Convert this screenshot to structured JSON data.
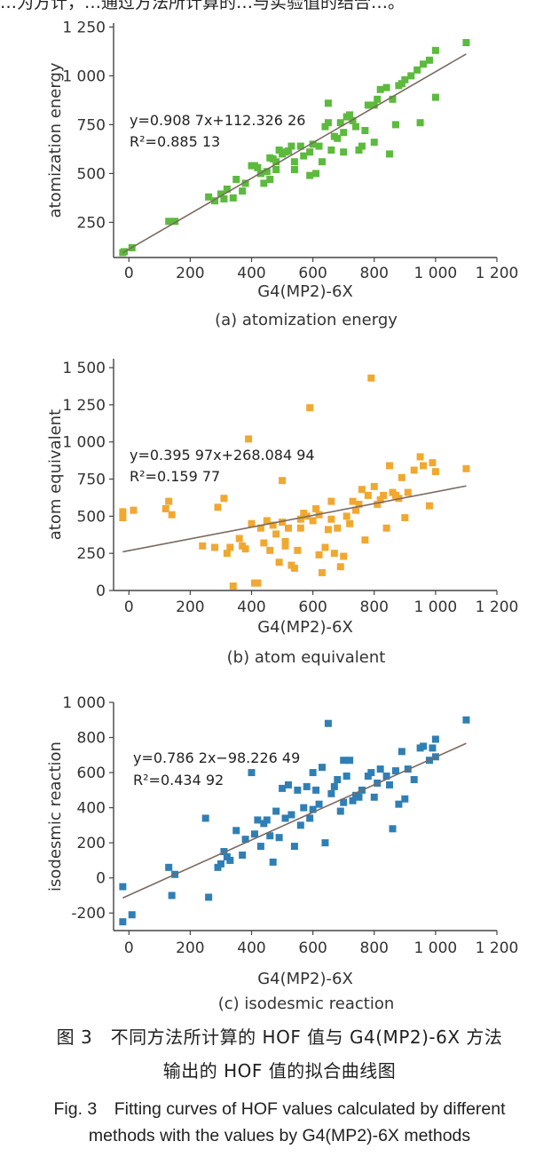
{
  "top_text_fragment": "…为方计，…通过方法所计算的…与实验值的结合…。",
  "caption": {
    "cn_line1": "图 3　不同方法所计算的 HOF 值与 G4(MP2)-6X 方法",
    "cn_line2": "输出的 HOF 值的拟合曲线图",
    "en_line1": "Fig. 3　Fitting curves of HOF values calculated by different",
    "en_line2": "methods with the values by G4(MP2)-6X methods"
  },
  "colors": {
    "green": "#5cba3c",
    "orange": "#f1a830",
    "blue": "#2f7fb5",
    "fit_line": "#7a6a62",
    "axis": "#444444"
  },
  "chart_data": [
    {
      "type": "scatter",
      "subcaption": "(a) atomization energy",
      "xlabel": "G4(MP2)-6X",
      "ylabel": "atomization energy",
      "xlim": [
        -50,
        1200
      ],
      "ylim": [
        70,
        1270
      ],
      "xticks": [
        0,
        200,
        400,
        600,
        800,
        1000,
        1200
      ],
      "xtick_labels": [
        "0",
        "200",
        "400",
        "600",
        "800",
        "1 000",
        "1 200"
      ],
      "yticks": [
        250,
        500,
        750,
        1000,
        1250
      ],
      "ytick_labels": [
        "250",
        "500",
        "750",
        "1 000",
        "1 250"
      ],
      "equation": "y=0.908 7x+112.326 26",
      "r2": "R²=0.885 13",
      "fit": {
        "slope": 0.9087,
        "intercept": 112.32626,
        "x_range": [
          -20,
          1100
        ]
      },
      "color": "#5cba3c",
      "points": [
        [
          -20,
          95
        ],
        [
          -15,
          100
        ],
        [
          10,
          120
        ],
        [
          130,
          255
        ],
        [
          150,
          255
        ],
        [
          260,
          380
        ],
        [
          280,
          360
        ],
        [
          300,
          395
        ],
        [
          310,
          370
        ],
        [
          320,
          420
        ],
        [
          340,
          375
        ],
        [
          350,
          470
        ],
        [
          370,
          410
        ],
        [
          380,
          450
        ],
        [
          400,
          540
        ],
        [
          410,
          540
        ],
        [
          420,
          530
        ],
        [
          430,
          500
        ],
        [
          440,
          450
        ],
        [
          450,
          510
        ],
        [
          460,
          580
        ],
        [
          470,
          575
        ],
        [
          480,
          560
        ],
        [
          490,
          620
        ],
        [
          500,
          600
        ],
        [
          510,
          610
        ],
        [
          520,
          615
        ],
        [
          530,
          640
        ],
        [
          540,
          560
        ],
        [
          560,
          640
        ],
        [
          570,
          590
        ],
        [
          590,
          490
        ],
        [
          600,
          650
        ],
        [
          610,
          500
        ],
        [
          620,
          640
        ],
        [
          630,
          560
        ],
        [
          640,
          740
        ],
        [
          650,
          760
        ],
        [
          660,
          620
        ],
        [
          670,
          690
        ],
        [
          690,
          760
        ],
        [
          700,
          710
        ],
        [
          710,
          790
        ],
        [
          720,
          800
        ],
        [
          730,
          770
        ],
        [
          740,
          740
        ],
        [
          750,
          620
        ],
        [
          770,
          720
        ],
        [
          780,
          850
        ],
        [
          800,
          850
        ],
        [
          810,
          880
        ],
        [
          820,
          930
        ],
        [
          840,
          940
        ],
        [
          850,
          600
        ],
        [
          860,
          880
        ],
        [
          870,
          750
        ],
        [
          880,
          950
        ],
        [
          890,
          960
        ],
        [
          900,
          980
        ],
        [
          920,
          1000
        ],
        [
          940,
          1030
        ],
        [
          950,
          760
        ],
        [
          960,
          1060
        ],
        [
          980,
          1080
        ],
        [
          1000,
          890
        ],
        [
          1000,
          1130
        ],
        [
          1100,
          1170
        ],
        [
          650,
          860
        ],
        [
          680,
          680
        ],
        [
          760,
          640
        ],
        [
          540,
          520
        ],
        [
          480,
          520
        ],
        [
          800,
          660
        ],
        [
          460,
          470
        ],
        [
          590,
          610
        ],
        [
          700,
          610
        ]
      ]
    },
    {
      "type": "scatter",
      "subcaption": "(b) atom equivalent",
      "xlabel": "G4(MP2)-6X",
      "ylabel": "atom equivalent",
      "xlim": [
        -50,
        1200
      ],
      "ylim": [
        0,
        1560
      ],
      "xticks": [
        0,
        200,
        400,
        600,
        800,
        1000,
        1200
      ],
      "xtick_labels": [
        "0",
        "200",
        "400",
        "600",
        "800",
        "1 000",
        "1 200"
      ],
      "yticks": [
        0,
        250,
        500,
        750,
        1000,
        1250,
        1500
      ],
      "ytick_labels": [
        "0",
        "250",
        "500",
        "750",
        "1 000",
        "1 250",
        "1 500"
      ],
      "equation": "y=0.395 97x+268.084 94",
      "r2": "R²=0.159 77",
      "fit": {
        "slope": 0.39597,
        "intercept": 268.08494,
        "x_range": [
          -20,
          1100
        ]
      },
      "color": "#f1a830",
      "points": [
        [
          -20,
          490
        ],
        [
          -20,
          530
        ],
        [
          15,
          540
        ],
        [
          120,
          550
        ],
        [
          130,
          600
        ],
        [
          140,
          510
        ],
        [
          240,
          300
        ],
        [
          280,
          290
        ],
        [
          290,
          560
        ],
        [
          310,
          620
        ],
        [
          320,
          250
        ],
        [
          330,
          290
        ],
        [
          340,
          30
        ],
        [
          360,
          350
        ],
        [
          370,
          300
        ],
        [
          380,
          280
        ],
        [
          390,
          1020
        ],
        [
          400,
          450
        ],
        [
          410,
          50
        ],
        [
          420,
          50
        ],
        [
          430,
          420
        ],
        [
          440,
          320
        ],
        [
          450,
          470
        ],
        [
          460,
          270
        ],
        [
          470,
          440
        ],
        [
          480,
          380
        ],
        [
          490,
          190
        ],
        [
          500,
          740
        ],
        [
          510,
          330
        ],
        [
          510,
          300
        ],
        [
          520,
          420
        ],
        [
          530,
          170
        ],
        [
          540,
          150
        ],
        [
          550,
          270
        ],
        [
          560,
          480
        ],
        [
          570,
          520
        ],
        [
          580,
          500
        ],
        [
          590,
          1230
        ],
        [
          600,
          470
        ],
        [
          610,
          550
        ],
        [
          620,
          240
        ],
        [
          630,
          120
        ],
        [
          640,
          290
        ],
        [
          650,
          410
        ],
        [
          660,
          600
        ],
        [
          670,
          250
        ],
        [
          680,
          420
        ],
        [
          690,
          160
        ],
        [
          700,
          230
        ],
        [
          710,
          500
        ],
        [
          720,
          450
        ],
        [
          730,
          600
        ],
        [
          740,
          540
        ],
        [
          750,
          580
        ],
        [
          760,
          680
        ],
        [
          770,
          340
        ],
        [
          780,
          640
        ],
        [
          790,
          1430
        ],
        [
          800,
          700
        ],
        [
          810,
          580
        ],
        [
          820,
          610
        ],
        [
          830,
          640
        ],
        [
          840,
          420
        ],
        [
          850,
          840
        ],
        [
          860,
          660
        ],
        [
          870,
          640
        ],
        [
          880,
          620
        ],
        [
          890,
          760
        ],
        [
          900,
          490
        ],
        [
          910,
          660
        ],
        [
          930,
          810
        ],
        [
          950,
          900
        ],
        [
          960,
          840
        ],
        [
          980,
          570
        ],
        [
          990,
          860
        ],
        [
          1000,
          800
        ],
        [
          1100,
          820
        ],
        [
          620,
          510
        ],
        [
          500,
          460
        ],
        [
          560,
          420
        ],
        [
          660,
          480
        ]
      ]
    },
    {
      "type": "scatter",
      "subcaption": "(c) isodesmic reaction",
      "xlabel": "G4(MP2)-6X",
      "ylabel": "isodesmic reaction",
      "xlim": [
        -50,
        1200
      ],
      "ylim": [
        -300,
        1000
      ],
      "xticks": [
        0,
        200,
        400,
        600,
        800,
        1000,
        1200
      ],
      "xtick_labels": [
        "0",
        "200",
        "400",
        "600",
        "800",
        "1 000",
        "1 200"
      ],
      "yticks": [
        -200,
        0,
        200,
        400,
        600,
        800,
        1000
      ],
      "ytick_labels": [
        "-200",
        "0",
        "200",
        "400",
        "600",
        "800",
        "1 000"
      ],
      "equation": "y=0.786 2x−98.226 49",
      "r2": "R²=0.434 92",
      "fit": {
        "slope": 0.7862,
        "intercept": -98.22649,
        "x_range": [
          -20,
          1100
        ]
      },
      "color": "#2f7fb5",
      "points": [
        [
          -20,
          -250
        ],
        [
          -20,
          -50
        ],
        [
          10,
          -210
        ],
        [
          130,
          60
        ],
        [
          140,
          -100
        ],
        [
          150,
          20
        ],
        [
          250,
          340
        ],
        [
          260,
          -110
        ],
        [
          290,
          60
        ],
        [
          300,
          80
        ],
        [
          310,
          150
        ],
        [
          320,
          120
        ],
        [
          330,
          100
        ],
        [
          350,
          270
        ],
        [
          370,
          130
        ],
        [
          380,
          220
        ],
        [
          400,
          600
        ],
        [
          410,
          250
        ],
        [
          420,
          330
        ],
        [
          430,
          180
        ],
        [
          440,
          310
        ],
        [
          450,
          330
        ],
        [
          460,
          240
        ],
        [
          470,
          90
        ],
        [
          480,
          380
        ],
        [
          490,
          230
        ],
        [
          500,
          510
        ],
        [
          510,
          340
        ],
        [
          520,
          530
        ],
        [
          530,
          360
        ],
        [
          540,
          180
        ],
        [
          550,
          500
        ],
        [
          560,
          300
        ],
        [
          570,
          400
        ],
        [
          580,
          520
        ],
        [
          590,
          340
        ],
        [
          600,
          390
        ],
        [
          610,
          500
        ],
        [
          620,
          420
        ],
        [
          630,
          630
        ],
        [
          640,
          200
        ],
        [
          650,
          880
        ],
        [
          660,
          480
        ],
        [
          670,
          520
        ],
        [
          680,
          560
        ],
        [
          690,
          380
        ],
        [
          700,
          430
        ],
        [
          710,
          580
        ],
        [
          720,
          670
        ],
        [
          730,
          440
        ],
        [
          740,
          470
        ],
        [
          750,
          460
        ],
        [
          760,
          500
        ],
        [
          780,
          580
        ],
        [
          790,
          600
        ],
        [
          800,
          460
        ],
        [
          810,
          540
        ],
        [
          820,
          620
        ],
        [
          840,
          580
        ],
        [
          850,
          530
        ],
        [
          860,
          280
        ],
        [
          870,
          610
        ],
        [
          880,
          420
        ],
        [
          890,
          720
        ],
        [
          900,
          450
        ],
        [
          910,
          620
        ],
        [
          930,
          560
        ],
        [
          950,
          740
        ],
        [
          960,
          750
        ],
        [
          980,
          670
        ],
        [
          990,
          740
        ],
        [
          1000,
          790
        ],
        [
          1000,
          690
        ],
        [
          1100,
          900
        ],
        [
          600,
          600
        ],
        [
          700,
          670
        ]
      ]
    }
  ]
}
